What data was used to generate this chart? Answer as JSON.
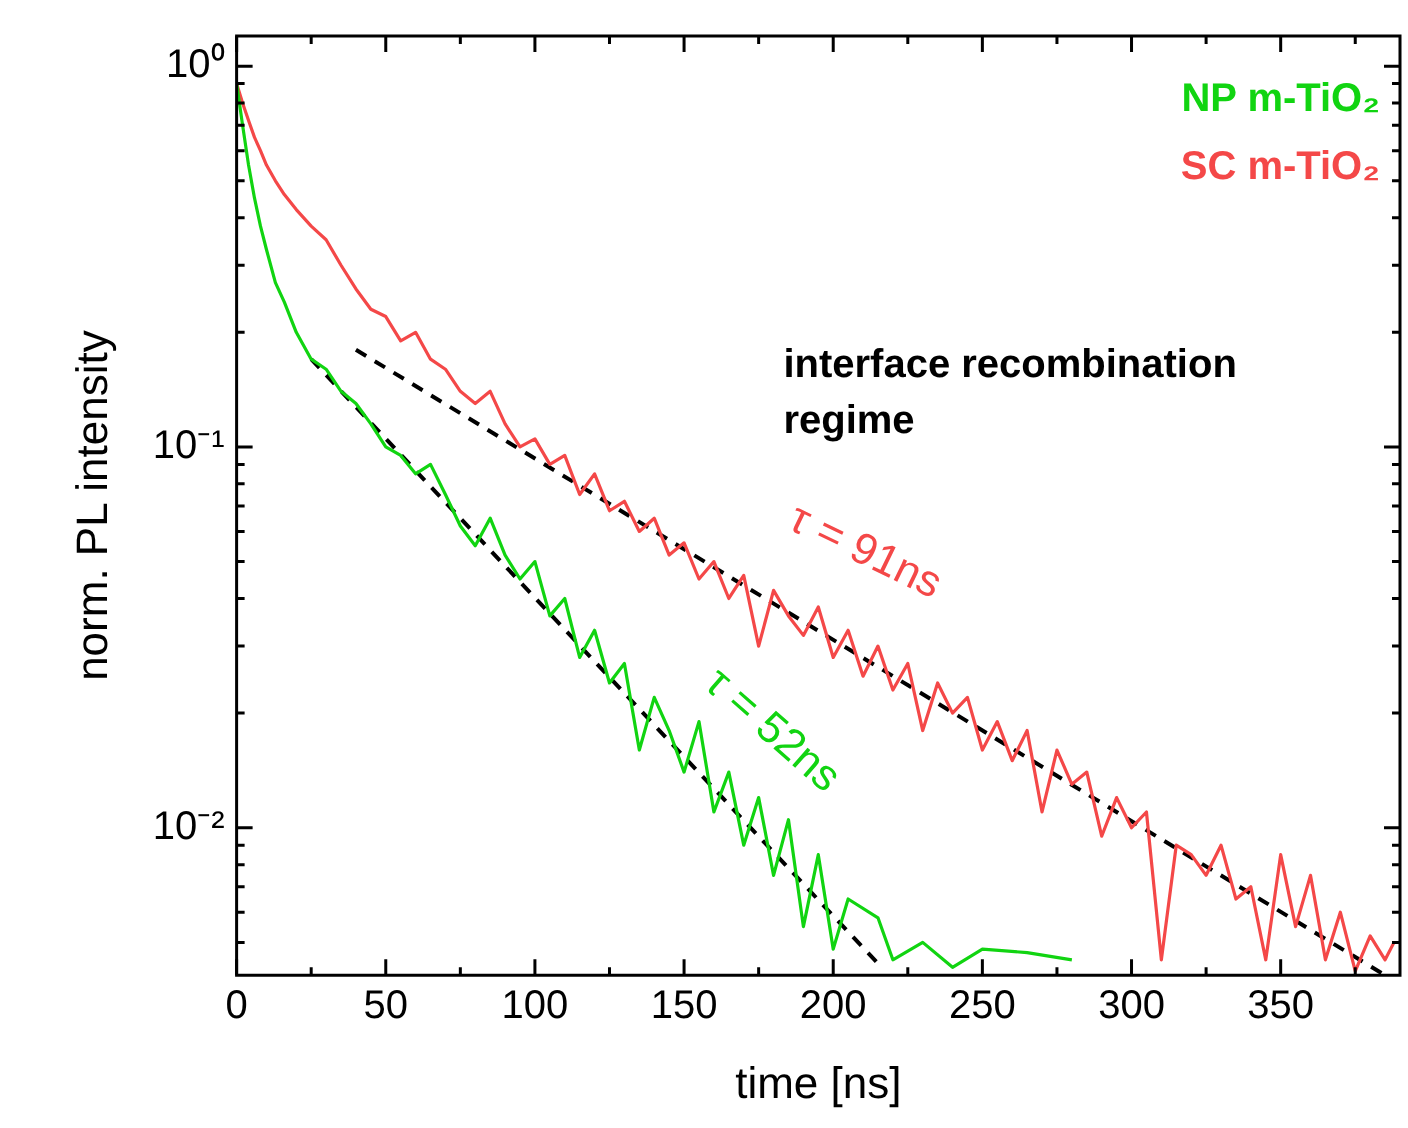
{
  "chart_data": {
    "type": "line",
    "xlabel": "time [ns]",
    "ylabel": "norm. PL intensity",
    "log": "y",
    "grid": false,
    "legend": "top right",
    "marker": "none",
    "xlim": [
      0,
      390
    ],
    "xticks": [
      0,
      {
        "value": 25,
        "label": null
      },
      50,
      {
        "value": 75,
        "label": null
      },
      100,
      {
        "value": 125,
        "label": null
      },
      150,
      {
        "value": 175,
        "label": null
      },
      200,
      {
        "value": 225,
        "label": null
      },
      250,
      {
        "value": 275,
        "label": null
      },
      300,
      {
        "value": 325,
        "label": null
      },
      350,
      {
        "value": 375,
        "label": null
      }
    ],
    "ylim": [
      0.0041,
      1.2
    ],
    "yticks": [
      {
        "value": 0.005,
        "label": null
      },
      {
        "value": 0.006,
        "label": null
      },
      {
        "value": 0.007,
        "label": null
      },
      {
        "value": 0.008,
        "label": null
      },
      {
        "value": 0.009,
        "label": null
      },
      {
        "value": 0.01,
        "label": "10⁻²"
      },
      {
        "value": 0.02,
        "label": null
      },
      {
        "value": 0.03,
        "label": null
      },
      {
        "value": 0.04,
        "label": null
      },
      {
        "value": 0.05,
        "label": null
      },
      {
        "value": 0.06,
        "label": null
      },
      {
        "value": 0.07,
        "label": null
      },
      {
        "value": 0.08,
        "label": null
      },
      {
        "value": 0.09,
        "label": null
      },
      {
        "value": 0.1,
        "label": "10⁻¹"
      },
      {
        "value": 0.2,
        "label": null
      },
      {
        "value": 0.3,
        "label": null
      },
      {
        "value": 0.4,
        "label": null
      },
      {
        "value": 0.5,
        "label": null
      },
      {
        "value": 0.6,
        "label": null
      },
      {
        "value": 0.7,
        "label": null
      },
      {
        "value": 0.8,
        "label": null
      },
      {
        "value": 0.9,
        "label": null
      },
      {
        "value": 1,
        "label": "10⁰"
      }
    ],
    "series": [
      {
        "name": "NP m-TiO₂",
        "color": "#11d411",
        "line_style": "solid",
        "x": [
          0,
          2,
          4,
          6,
          8,
          10,
          13,
          16,
          20,
          25,
          30,
          35,
          40,
          45,
          50,
          55,
          60,
          65,
          70,
          75,
          80,
          85,
          90,
          95,
          100,
          105,
          110,
          115,
          120,
          125,
          130,
          135,
          140,
          145,
          150,
          155,
          160,
          165,
          170,
          175,
          180,
          185,
          190,
          195,
          200,
          205,
          215,
          220,
          230,
          240,
          250,
          265,
          280
        ],
        "values": [
          0.9,
          0.7,
          0.55,
          0.45,
          0.38,
          0.33,
          0.27,
          0.24,
          0.2,
          0.17,
          0.16,
          0.14,
          0.13,
          0.115,
          0.1,
          0.095,
          0.085,
          0.09,
          0.075,
          0.062,
          0.055,
          0.065,
          0.052,
          0.045,
          0.05,
          0.036,
          0.04,
          0.028,
          0.033,
          0.024,
          0.027,
          0.016,
          0.022,
          0.018,
          0.014,
          0.019,
          0.011,
          0.014,
          0.009,
          0.012,
          0.0075,
          0.0105,
          0.0055,
          0.0085,
          0.0048,
          0.0065,
          0.0058,
          0.0045,
          0.005,
          0.0043,
          0.0048,
          0.0047,
          0.0045
        ]
      },
      {
        "name": "SC m-TiO₂",
        "color": "#f44848",
        "line_style": "solid",
        "x": [
          0,
          2,
          4,
          6,
          8,
          10,
          13,
          16,
          20,
          25,
          30,
          35,
          40,
          45,
          50,
          55,
          60,
          65,
          70,
          75,
          80,
          85,
          90,
          95,
          100,
          105,
          110,
          115,
          120,
          125,
          130,
          135,
          140,
          145,
          150,
          155,
          160,
          165,
          170,
          175,
          180,
          185,
          190,
          195,
          200,
          205,
          210,
          215,
          220,
          225,
          230,
          235,
          240,
          245,
          250,
          255,
          260,
          265,
          270,
          275,
          280,
          285,
          290,
          295,
          300,
          305,
          310,
          315,
          320,
          325,
          330,
          335,
          340,
          345,
          350,
          355,
          360,
          365,
          370,
          375,
          380,
          385,
          388
        ],
        "values": [
          0.9,
          0.8,
          0.72,
          0.65,
          0.6,
          0.55,
          0.5,
          0.46,
          0.42,
          0.38,
          0.35,
          0.3,
          0.26,
          0.23,
          0.22,
          0.19,
          0.2,
          0.17,
          0.16,
          0.14,
          0.13,
          0.14,
          0.115,
          0.1,
          0.105,
          0.09,
          0.095,
          0.075,
          0.085,
          0.068,
          0.072,
          0.06,
          0.065,
          0.052,
          0.056,
          0.045,
          0.05,
          0.04,
          0.046,
          0.03,
          0.042,
          0.036,
          0.032,
          0.038,
          0.028,
          0.033,
          0.025,
          0.03,
          0.023,
          0.027,
          0.018,
          0.024,
          0.02,
          0.022,
          0.016,
          0.019,
          0.015,
          0.018,
          0.011,
          0.016,
          0.013,
          0.014,
          0.0095,
          0.012,
          0.01,
          0.011,
          0.0045,
          0.009,
          0.0085,
          0.0075,
          0.009,
          0.0065,
          0.007,
          0.0045,
          0.0085,
          0.0055,
          0.0075,
          0.0045,
          0.006,
          0.0042,
          0.0052,
          0.0045,
          0.005
        ]
      },
      {
        "color": "#000000",
        "line_style": "dashed",
        "x": [
          25,
          215
        ],
        "values": [
          0.17,
          0.0044
        ]
      },
      {
        "color": "#000000",
        "line_style": "dashed",
        "x": [
          40,
          385
        ],
        "values": [
          0.18,
          0.0041
        ]
      }
    ],
    "annotations": [
      "interface recombination regime",
      "τ = 52ns",
      "τ = 91ns"
    ]
  }
}
